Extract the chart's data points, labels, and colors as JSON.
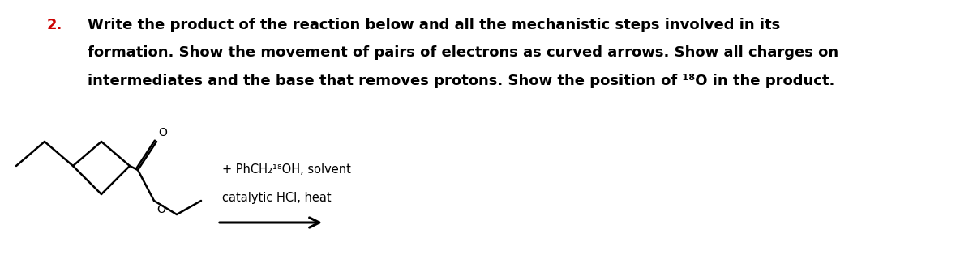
{
  "title_number": "2.",
  "title_number_color": "#cc0000",
  "title_text_line1": "Write the product of the reaction below and all the mechanistic steps involved in its",
  "title_text_line2": "formation. Show the movement of pairs of electrons as curved arrows. Show all charges on",
  "title_text_line3": "intermediates and the base that removes protons. Show the position of ¹⁸O in the product.",
  "reagent_line1": "+ PhCH₂¹⁸OH, solvent",
  "reagent_line2": "catalytic HCl, heat",
  "bg_color": "#ffffff",
  "text_color": "#000000",
  "title_fontsize": 13.0,
  "reagent_fontsize": 10.5,
  "lw": 1.8
}
